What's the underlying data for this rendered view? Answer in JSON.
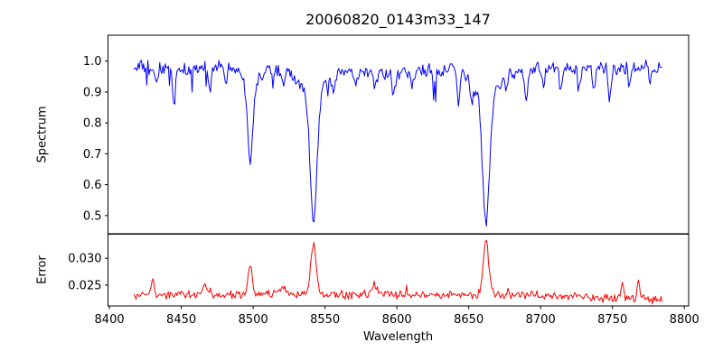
{
  "title": "20060820_0143m33_147",
  "axes": {
    "xlabel": "Wavelength",
    "spectrum_ylabel": "Spectrum",
    "error_ylabel": "Error"
  },
  "colors": {
    "spectrum_line": "#0000ff",
    "error_line": "#ff0000",
    "axis": "#000000",
    "background": "#ffffff"
  },
  "chart_data": [
    {
      "type": "line",
      "name": "spectrum",
      "ylabel": "Spectrum",
      "series_color": "#0000ff",
      "xlim": [
        8399,
        8803
      ],
      "ylim": [
        0.441,
        1.084
      ],
      "grid": false,
      "legend": null,
      "x_tick_labels_visible": false,
      "yticks": [
        {
          "v": 0.5,
          "label": "0.5"
        },
        {
          "v": 0.6,
          "label": "0.6"
        },
        {
          "v": 0.7,
          "label": "0.7"
        },
        {
          "v": 0.8,
          "label": "0.8"
        },
        {
          "v": 0.9,
          "label": "0.9"
        },
        {
          "v": 1.0,
          "label": "1.0"
        }
      ],
      "data_x_range": [
        8417,
        8785
      ],
      "sample_step": 0.75,
      "continuum_level": 0.972,
      "noise_peak_to_peak": 0.05,
      "absorption_lines": [
        {
          "center": 8498,
          "min_flux": 0.66,
          "core_width": 1.7,
          "wing_width": 5.5,
          "wing_frac": 0.18
        },
        {
          "center": 8542,
          "min_flux": 0.48,
          "core_width": 2.3,
          "wing_width": 7.5,
          "wing_frac": 0.18
        },
        {
          "center": 8662,
          "min_flux": 0.48,
          "core_width": 2.3,
          "wing_width": 7.5,
          "wing_frac": 0.18
        }
      ],
      "minor_dips": [
        {
          "center": 8433,
          "min_flux": 0.915
        },
        {
          "center": 8445,
          "min_flux": 0.857
        },
        {
          "center": 8470,
          "min_flux": 0.9
        },
        {
          "center": 8481,
          "min_flux": 0.915
        },
        {
          "center": 8514,
          "min_flux": 0.93
        },
        {
          "center": 8521,
          "min_flux": 0.91
        },
        {
          "center": 8556,
          "min_flux": 0.93
        },
        {
          "center": 8571,
          "min_flux": 0.92
        },
        {
          "center": 8585,
          "min_flux": 0.91
        },
        {
          "center": 8598,
          "min_flux": 0.905
        },
        {
          "center": 8611,
          "min_flux": 0.92
        },
        {
          "center": 8626,
          "min_flux": 0.915
        },
        {
          "center": 8643,
          "min_flux": 0.87
        },
        {
          "center": 8652,
          "min_flux": 0.9
        },
        {
          "center": 8676,
          "min_flux": 0.92
        },
        {
          "center": 8690,
          "min_flux": 0.88
        },
        {
          "center": 8702,
          "min_flux": 0.91
        },
        {
          "center": 8714,
          "min_flux": 0.89
        },
        {
          "center": 8727,
          "min_flux": 0.92
        },
        {
          "center": 8737,
          "min_flux": 0.9
        },
        {
          "center": 8748,
          "min_flux": 0.868
        },
        {
          "center": 8762,
          "min_flux": 0.91
        },
        {
          "center": 8776,
          "min_flux": 0.92
        }
      ]
    },
    {
      "type": "line",
      "name": "error",
      "xlabel": "Wavelength",
      "ylabel": "Error",
      "series_color": "#ff0000",
      "xlim": [
        8399,
        8803
      ],
      "ylim": [
        0.0211,
        0.0345
      ],
      "grid": false,
      "legend": null,
      "xticks": [
        {
          "v": 8400,
          "label": "8400"
        },
        {
          "v": 8450,
          "label": "8450"
        },
        {
          "v": 8500,
          "label": "8500"
        },
        {
          "v": 8550,
          "label": "8550"
        },
        {
          "v": 8600,
          "label": "8600"
        },
        {
          "v": 8650,
          "label": "8650"
        },
        {
          "v": 8700,
          "label": "8700"
        },
        {
          "v": 8750,
          "label": "8750"
        },
        {
          "v": 8800,
          "label": "8800"
        }
      ],
      "yticks": [
        {
          "v": 0.025,
          "label": "0.025"
        },
        {
          "v": 0.03,
          "label": "0.030"
        }
      ],
      "data_x_range": [
        8417,
        8785
      ],
      "sample_step": 0.75,
      "baseline_level": 0.0232,
      "baseline_end_level": 0.0222,
      "noise_peak_to_peak": 0.0012,
      "error_peaks": [
        {
          "center": 8430,
          "peak": 0.0262,
          "width": 1.0
        },
        {
          "center": 8466,
          "peak": 0.025,
          "width": 1.5
        },
        {
          "center": 8498,
          "peak": 0.0285,
          "width": 1.5
        },
        {
          "center": 8520,
          "peak": 0.0248,
          "width": 2.5
        },
        {
          "center": 8542,
          "peak": 0.0331,
          "width": 1.8
        },
        {
          "center": 8585,
          "peak": 0.0245,
          "width": 2.0
        },
        {
          "center": 8662,
          "peak": 0.0338,
          "width": 1.8
        },
        {
          "center": 8757,
          "peak": 0.0262,
          "width": 0.9
        },
        {
          "center": 8768,
          "peak": 0.0267,
          "width": 0.9
        }
      ]
    }
  ]
}
